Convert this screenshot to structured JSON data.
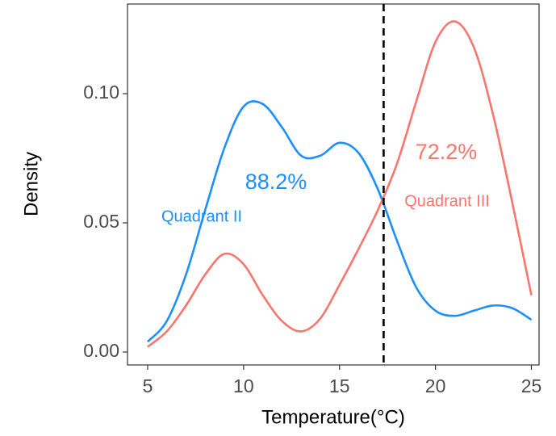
{
  "chart_data": {
    "type": "line",
    "x_label": "Temperature(°C)",
    "y_label": "Density",
    "x": [
      5,
      6,
      7,
      8,
      9,
      10,
      11,
      12,
      13,
      14,
      15,
      16,
      17,
      18,
      19,
      20,
      21,
      22,
      23,
      24,
      25
    ],
    "series": [
      {
        "name": "Quadrant II",
        "label": "88.2%",
        "color": "#1e8fff",
        "values": [
          0.004,
          0.012,
          0.03,
          0.055,
          0.079,
          0.095,
          0.096,
          0.087,
          0.076,
          0.076,
          0.081,
          0.077,
          0.063,
          0.043,
          0.025,
          0.016,
          0.014,
          0.016,
          0.018,
          0.017,
          0.0125
        ]
      },
      {
        "name": "Quadrant III",
        "label": "72.2%",
        "color": "#f8766d",
        "values": [
          0.002,
          0.008,
          0.018,
          0.03,
          0.038,
          0.034,
          0.022,
          0.012,
          0.008,
          0.013,
          0.026,
          0.04,
          0.055,
          0.073,
          0.097,
          0.12,
          0.128,
          0.118,
          0.092,
          0.058,
          0.022
        ]
      }
    ],
    "vline": 17.3,
    "xlim": [
      3.95,
      25.4
    ],
    "ylim": [
      -0.005,
      0.1347
    ],
    "xticks": [
      5,
      10,
      15,
      20,
      25
    ],
    "yticks": [
      {
        "value": 0,
        "label": "0.00"
      },
      {
        "value": 0.05,
        "label": "0.05"
      },
      {
        "value": 0.1,
        "label": "0.10"
      }
    ]
  }
}
